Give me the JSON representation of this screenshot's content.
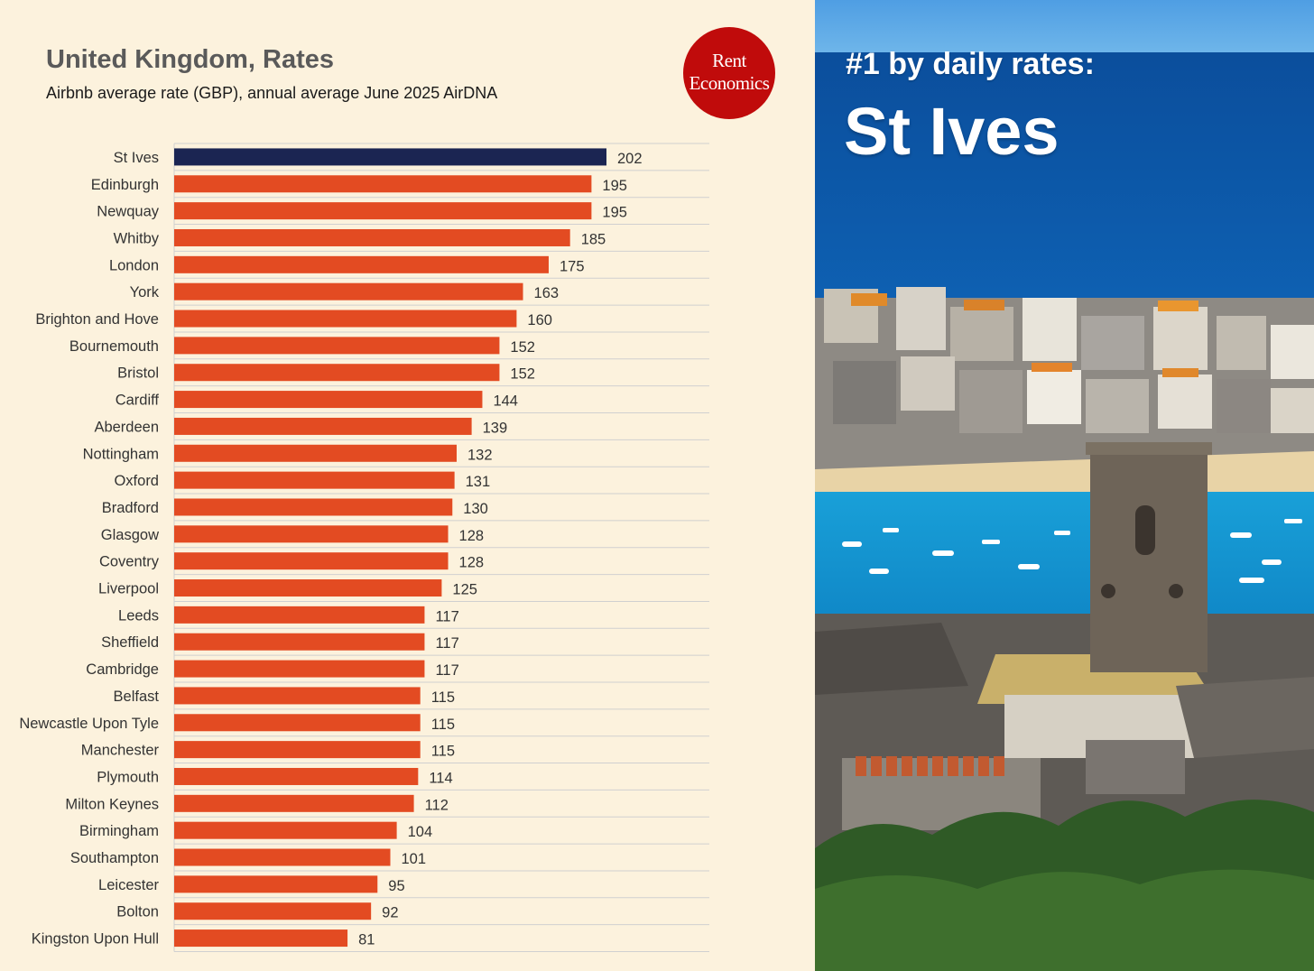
{
  "header": {
    "title": "United Kingdom, Rates",
    "subtitle": "Airbnb average rate (GBP), annual average June 2025 AirDNA"
  },
  "logo": {
    "line1": "Rent",
    "line2": "Economics",
    "color": "#c00b0b"
  },
  "photo": {
    "kicker": "#1 by daily rates:",
    "headline": "St Ives"
  },
  "colors": {
    "highlight": "#1b2552",
    "bar": "#e34b22",
    "grid": "#d0d0d0"
  },
  "chart_data": {
    "type": "bar",
    "orientation": "horizontal",
    "title": "United Kingdom, Rates",
    "subtitle": "Airbnb average rate (GBP), annual average June 2025 AirDNA",
    "xlabel": "",
    "ylabel": "",
    "xlim": [
      0,
      202
    ],
    "highlight": "St Ives",
    "categories": [
      "St Ives",
      "Edinburgh",
      "Newquay",
      "Whitby",
      "London",
      "York",
      "Brighton and Hove",
      "Bournemouth",
      "Bristol",
      "Cardiff",
      "Aberdeen",
      "Nottingham",
      "Oxford",
      "Bradford",
      "Glasgow",
      "Coventry",
      "Liverpool",
      "Leeds",
      "Sheffield",
      "Cambridge",
      "Belfast",
      "Newcastle Upon Tyle",
      "Manchester",
      "Plymouth",
      "Milton Keynes",
      "Birmingham",
      "Southampton",
      "Leicester",
      "Bolton",
      "Kingston Upon Hull"
    ],
    "values": [
      202,
      195,
      195,
      185,
      175,
      163,
      160,
      152,
      152,
      144,
      139,
      132,
      131,
      130,
      128,
      128,
      125,
      117,
      117,
      117,
      115,
      115,
      115,
      114,
      112,
      104,
      101,
      95,
      92,
      81
    ]
  }
}
